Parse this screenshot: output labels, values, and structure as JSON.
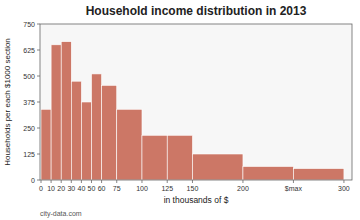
{
  "chart_data": {
    "type": "histogram",
    "title": "Household income distribution in 2013",
    "x_label": "in thousands of $",
    "y_label": "Households per each $1000 section",
    "annotations": [
      "city-data.com"
    ],
    "bins": [
      0,
      10,
      20,
      30,
      40,
      50,
      60,
      75,
      100,
      125,
      150,
      200,
      250,
      300
    ],
    "values": [
      340,
      650,
      665,
      475,
      375,
      510,
      455,
      340,
      215,
      215,
      125,
      65,
      55
    ],
    "color": "#cc7766",
    "xlim": [
      -1,
      308
    ],
    "xticks": [
      0,
      10,
      20,
      30,
      40,
      50,
      60,
      75,
      100,
      125,
      150,
      200,
      {
        "value": 250,
        "label": "$max"
      },
      300
    ],
    "ylim": [
      0,
      750
    ],
    "yticks": [
      0,
      125,
      250,
      375,
      500,
      625,
      750
    ],
    "grid": false
  }
}
